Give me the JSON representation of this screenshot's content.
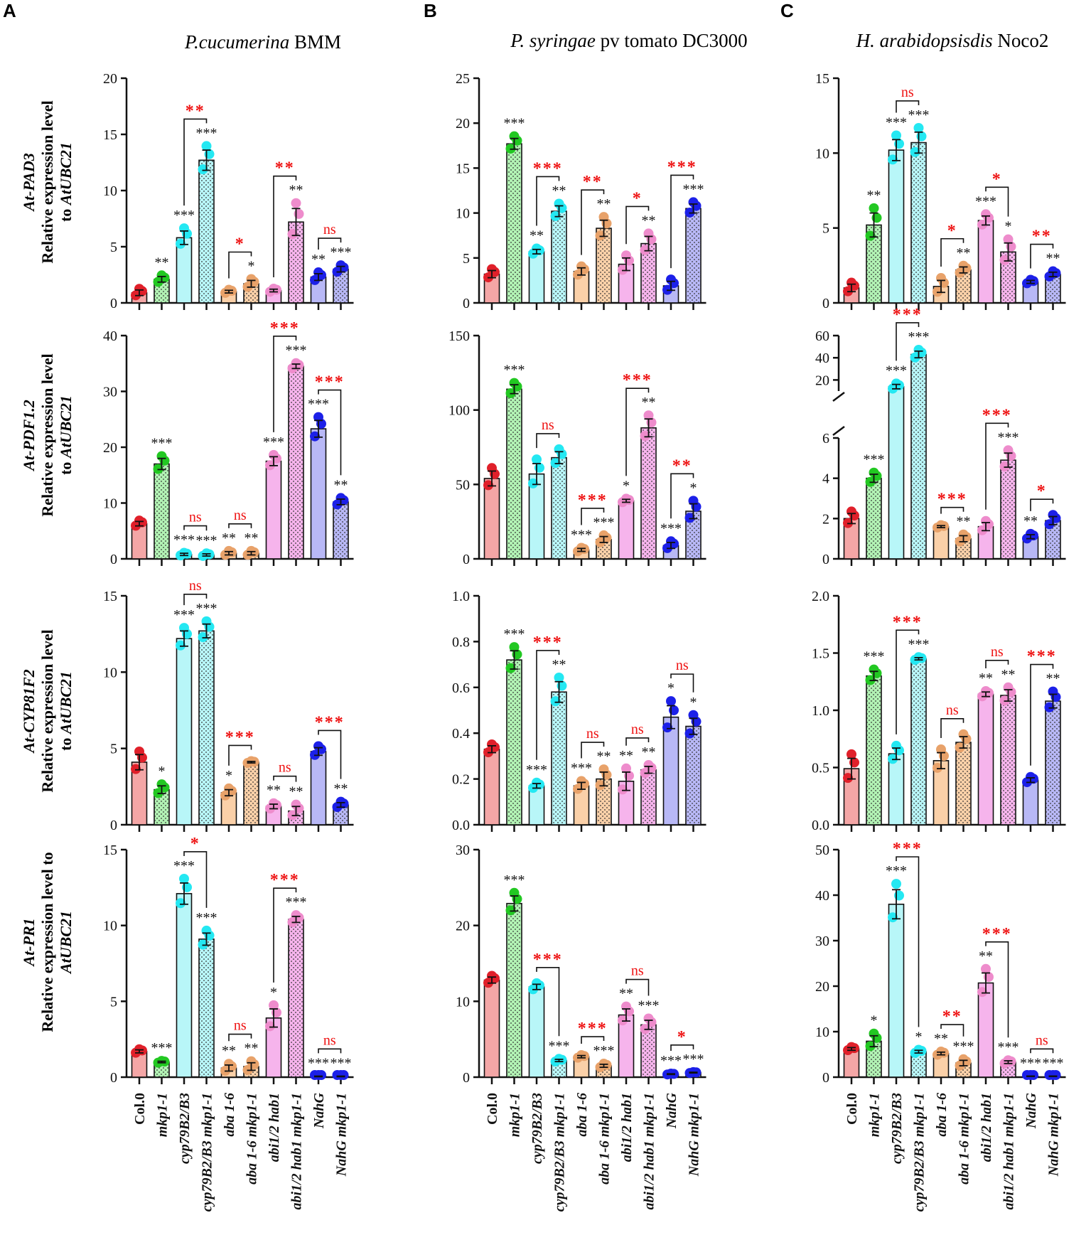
{
  "panels": [
    {
      "letter": "A",
      "pathogen_italic": "P.cucumerina",
      "pathogen_rest": " BMM"
    },
    {
      "letter": "B",
      "pathogen_italic": "P. syringae",
      "pathogen_rest": " pv tomato DC3000"
    },
    {
      "letter": "C",
      "pathogen_italic": "H. arabidopsisdis",
      "pathogen_rest": " Noco2"
    }
  ],
  "row_labels": [
    {
      "gene": "At-PAD3",
      "line1": "Relative expression level",
      "line2_plain": "to ",
      "line2_italic": "AtUBC21"
    },
    {
      "gene": "At-PDF1.2",
      "line1": "Relative expression level",
      "line2_plain": "to ",
      "line2_italic": "AtUBC21"
    },
    {
      "gene": "At-CYP81F2",
      "line1": "Relative expression level",
      "line2_plain": "to ",
      "line2_italic": "AtUBC21"
    },
    {
      "gene": "At-PR1",
      "line1": "Relative expression level to",
      "line2_plain": "",
      "line2_italic": "AtUBC21"
    }
  ],
  "genotypes": [
    "Col.0",
    "mkp1-1",
    "cyp79B2/B3",
    "cyp79B2/B3 mkp1-1",
    "aba 1-6",
    "aba 1-6 mkp1-1",
    "abi1/2 hab1",
    "abi1/2 hab1 mkp1-1",
    "NahG",
    "NahG mkp1-1"
  ],
  "chart_data": [
    {
      "type": "bar",
      "gene": "At-PAD3",
      "pathogen": "P.cucumerina BMM",
      "ylim": [
        0,
        20
      ],
      "ticks": [
        0,
        5,
        10,
        15,
        20
      ],
      "values": [
        0.9,
        2.1,
        5.8,
        12.7,
        1.0,
        1.7,
        1.1,
        7.2,
        2.3,
        3.0
      ],
      "errors": [
        0.25,
        0.25,
        0.6,
        0.9,
        0.12,
        0.3,
        0.12,
        1.2,
        0.3,
        0.25
      ],
      "marks": [
        "",
        "**",
        "***",
        "***",
        "",
        "*",
        "",
        "**",
        "**",
        "***"
      ],
      "comparisons": [
        {
          "pair": [
            2,
            3
          ],
          "label": "**",
          "color": "red"
        },
        {
          "pair": [
            4,
            5
          ],
          "label": "*",
          "color": "red"
        },
        {
          "pair": [
            6,
            7
          ],
          "label": "**",
          "color": "red"
        },
        {
          "pair": [
            8,
            9
          ],
          "label": "ns",
          "color": "red"
        }
      ]
    },
    {
      "type": "bar",
      "gene": "At-PAD3",
      "pathogen": "P. syringae pv tomato DC3000",
      "ylim": [
        0,
        25
      ],
      "ticks": [
        0,
        5,
        10,
        15,
        20,
        25
      ],
      "values": [
        3.2,
        17.7,
        5.7,
        10.2,
        3.5,
        8.3,
        4.3,
        6.6,
        1.9,
        10.5
      ],
      "errors": [
        0.4,
        0.6,
        0.25,
        0.6,
        0.4,
        0.9,
        0.7,
        0.8,
        0.5,
        0.5
      ],
      "marks": [
        "",
        "***",
        "**",
        "**",
        "",
        "**",
        "",
        "**",
        "",
        "***"
      ],
      "comparisons": [
        {
          "pair": [
            2,
            3
          ],
          "label": "***",
          "color": "red"
        },
        {
          "pair": [
            4,
            5
          ],
          "label": "**",
          "color": "red"
        },
        {
          "pair": [
            6,
            7
          ],
          "label": "*",
          "color": "red"
        },
        {
          "pair": [
            8,
            9
          ],
          "label": "***",
          "color": "red"
        }
      ]
    },
    {
      "type": "bar",
      "gene": "At-PAD3",
      "pathogen": "H. arabidopsisdis Noco2",
      "ylim": [
        0,
        15
      ],
      "ticks": [
        0,
        5,
        10,
        15
      ],
      "values": [
        1.0,
        5.2,
        10.2,
        10.7,
        1.1,
        2.2,
        5.5,
        3.4,
        1.4,
        1.9
      ],
      "errors": [
        0.25,
        0.8,
        0.7,
        0.7,
        0.4,
        0.2,
        0.3,
        0.6,
        0.1,
        0.15
      ],
      "marks": [
        "",
        "**",
        "***",
        "***",
        "",
        "**",
        "***",
        "*",
        "",
        "**"
      ],
      "comparisons": [
        {
          "pair": [
            2,
            3
          ],
          "label": "ns",
          "color": "red"
        },
        {
          "pair": [
            4,
            5
          ],
          "label": "*",
          "color": "red"
        },
        {
          "pair": [
            6,
            7
          ],
          "label": "*",
          "color": "red"
        },
        {
          "pair": [
            8,
            9
          ],
          "label": "**",
          "color": "red"
        }
      ]
    },
    {
      "type": "bar",
      "gene": "At-PDF1.2",
      "pathogen": "P.cucumerina BMM",
      "ylim": [
        0,
        40
      ],
      "ticks": [
        0,
        10,
        20,
        30,
        40
      ],
      "values": [
        6.3,
        17.0,
        0.8,
        0.7,
        1.0,
        1.0,
        17.5,
        34.5,
        23.3,
        10.2
      ],
      "errors": [
        0.4,
        1.0,
        0.2,
        0.2,
        0.3,
        0.3,
        0.8,
        0.4,
        1.5,
        0.5
      ],
      "marks": [
        "",
        "***",
        "***",
        "***",
        "**",
        "**",
        "***",
        "***",
        "***",
        "**"
      ],
      "comparisons": [
        {
          "pair": [
            2,
            3
          ],
          "label": "ns",
          "color": "red"
        },
        {
          "pair": [
            4,
            5
          ],
          "label": "ns",
          "color": "red"
        },
        {
          "pair": [
            6,
            7
          ],
          "label": "***",
          "color": "red"
        },
        {
          "pair": [
            8,
            9
          ],
          "label": "***",
          "color": "red"
        }
      ]
    },
    {
      "type": "bar",
      "gene": "At-PDF1.2",
      "pathogen": "P. syringae pv tomato DC3000",
      "ylim": [
        0,
        150
      ],
      "ticks": [
        0,
        50,
        100,
        150
      ],
      "values": [
        54,
        114,
        57,
        68,
        6,
        13,
        39,
        88,
        9,
        32
      ],
      "errors": [
        5,
        3,
        7,
        4,
        1,
        2,
        1,
        6,
        2,
        5
      ],
      "marks": [
        "",
        "***",
        "",
        "",
        "***",
        "***",
        "*",
        "**",
        "***",
        "*"
      ],
      "comparisons": [
        {
          "pair": [
            2,
            3
          ],
          "label": "ns",
          "color": "red"
        },
        {
          "pair": [
            4,
            5
          ],
          "label": "***",
          "color": "red"
        },
        {
          "pair": [
            6,
            7
          ],
          "label": "***",
          "color": "red"
        },
        {
          "pair": [
            8,
            9
          ],
          "label": "**",
          "color": "red"
        }
      ]
    },
    {
      "type": "bar",
      "gene": "At-PDF1.2",
      "pathogen": "H. arabidopsisdis Noco2",
      "broken_axis": true,
      "lower_ylim": [
        0,
        6
      ],
      "lower_ticks": [
        0,
        2,
        4,
        6
      ],
      "upper_ylim": [
        10,
        60
      ],
      "upper_ticks": [
        20,
        40,
        60
      ],
      "values": [
        2.0,
        4.0,
        14.0,
        43.0,
        1.6,
        1.0,
        1.6,
        4.9,
        1.1,
        1.9
      ],
      "errors": [
        0.25,
        0.2,
        2.0,
        3.0,
        0.05,
        0.15,
        0.2,
        0.35,
        0.1,
        0.2
      ],
      "marks": [
        "",
        "***",
        "***",
        "***",
        "",
        "**",
        "",
        "***",
        "**",
        ""
      ],
      "comparisons": [
        {
          "pair": [
            2,
            3
          ],
          "label": "***",
          "color": "red"
        },
        {
          "pair": [
            4,
            5
          ],
          "label": "***",
          "color": "red"
        },
        {
          "pair": [
            6,
            7
          ],
          "label": "***",
          "color": "red"
        },
        {
          "pair": [
            8,
            9
          ],
          "label": "*",
          "color": "red"
        }
      ]
    },
    {
      "type": "bar",
      "gene": "At-CYP81F2",
      "pathogen": "P.cucumerina BMM",
      "ylim": [
        0,
        15
      ],
      "ticks": [
        0,
        5,
        10,
        15
      ],
      "values": [
        4.1,
        2.3,
        12.2,
        12.7,
        2.1,
        4.1,
        1.2,
        0.9,
        4.8,
        1.3
      ],
      "errors": [
        0.5,
        0.25,
        0.5,
        0.45,
        0.2,
        0.05,
        0.15,
        0.3,
        0.25,
        0.15
      ],
      "marks": [
        "",
        "*",
        "***",
        "***",
        "*",
        "",
        "**",
        "**",
        "",
        "**"
      ],
      "comparisons": [
        {
          "pair": [
            2,
            3
          ],
          "label": "ns",
          "color": "red"
        },
        {
          "pair": [
            4,
            5
          ],
          "label": "***",
          "color": "red"
        },
        {
          "pair": [
            6,
            7
          ],
          "label": "ns",
          "color": "red"
        },
        {
          "pair": [
            8,
            9
          ],
          "label": "***",
          "color": "red"
        }
      ]
    },
    {
      "type": "bar",
      "gene": "At-CYP81F2",
      "pathogen": "P. syringae pv tomato DC3000",
      "ylim": [
        0,
        1.0
      ],
      "ticks": [
        0,
        0.2,
        0.4,
        0.6,
        0.8,
        1.0
      ],
      "tick_decimals": 1,
      "values": [
        0.33,
        0.72,
        0.17,
        0.58,
        0.17,
        0.2,
        0.19,
        0.24,
        0.47,
        0.43
      ],
      "errors": [
        0.015,
        0.04,
        0.01,
        0.045,
        0.015,
        0.03,
        0.04,
        0.015,
        0.05,
        0.035
      ],
      "marks": [
        "",
        "***",
        "***",
        "**",
        "***",
        "**",
        "**",
        "**",
        "*",
        "*"
      ],
      "comparisons": [
        {
          "pair": [
            2,
            3
          ],
          "label": "***",
          "color": "red"
        },
        {
          "pair": [
            4,
            5
          ],
          "label": "ns",
          "color": "red"
        },
        {
          "pair": [
            6,
            7
          ],
          "label": "ns",
          "color": "red"
        },
        {
          "pair": [
            8,
            9
          ],
          "label": "ns",
          "color": "red"
        }
      ]
    },
    {
      "type": "bar",
      "gene": "At-CYP81F2",
      "pathogen": "H. arabidopsisdis Noco2",
      "ylim": [
        0,
        2.0
      ],
      "ticks": [
        0,
        0.5,
        1.0,
        1.5,
        2.0
      ],
      "tick_decimals": 1,
      "values": [
        0.49,
        1.3,
        0.62,
        1.45,
        0.56,
        0.72,
        1.14,
        1.13,
        0.39,
        1.08
      ],
      "errors": [
        0.09,
        0.04,
        0.05,
        0.01,
        0.07,
        0.05,
        0.02,
        0.05,
        0.02,
        0.06
      ],
      "marks": [
        "",
        "***",
        "",
        "***",
        "",
        "",
        "**",
        "**",
        "",
        "**"
      ],
      "comparisons": [
        {
          "pair": [
            2,
            3
          ],
          "label": "***",
          "color": "red"
        },
        {
          "pair": [
            4,
            5
          ],
          "label": "ns",
          "color": "red"
        },
        {
          "pair": [
            6,
            7
          ],
          "label": "ns",
          "color": "red"
        },
        {
          "pair": [
            8,
            9
          ],
          "label": "***",
          "color": "red"
        }
      ]
    },
    {
      "type": "bar",
      "gene": "At-PR1",
      "pathogen": "P.cucumerina BMM",
      "ylim": [
        0,
        15
      ],
      "ticks": [
        0,
        5,
        10,
        15
      ],
      "values": [
        1.7,
        1.0,
        12.1,
        9.1,
        0.6,
        0.7,
        3.9,
        10.4,
        0.05,
        0.05
      ],
      "errors": [
        0.1,
        0.05,
        0.7,
        0.4,
        0.2,
        0.25,
        0.6,
        0.2,
        0.02,
        0.02
      ],
      "marks": [
        "",
        "***",
        "***",
        "***",
        "**",
        "**",
        "*",
        "***",
        "***",
        "***"
      ],
      "comparisons": [
        {
          "pair": [
            2,
            3
          ],
          "label": "*",
          "color": "red"
        },
        {
          "pair": [
            4,
            5
          ],
          "label": "ns",
          "color": "red"
        },
        {
          "pair": [
            6,
            7
          ],
          "label": "***",
          "color": "red"
        },
        {
          "pair": [
            8,
            9
          ],
          "label": "ns",
          "color": "red"
        }
      ]
    },
    {
      "type": "bar",
      "gene": "At-PR1",
      "pathogen": "P. syringae pv tomato DC3000",
      "ylim": [
        0,
        30
      ],
      "ticks": [
        0,
        10,
        20,
        30
      ],
      "values": [
        12.8,
        22.9,
        11.9,
        2.2,
        2.7,
        1.5,
        8.2,
        6.9,
        0.4,
        0.6
      ],
      "errors": [
        0.4,
        1.0,
        0.35,
        0.15,
        0.15,
        0.2,
        0.8,
        0.6,
        0.05,
        0.05
      ],
      "marks": [
        "",
        "***",
        "",
        "***",
        "",
        "***",
        "**",
        "***",
        "***",
        "***"
      ],
      "comparisons": [
        {
          "pair": [
            2,
            3
          ],
          "label": "***",
          "color": "red"
        },
        {
          "pair": [
            4,
            5
          ],
          "label": "***",
          "color": "red"
        },
        {
          "pair": [
            6,
            7
          ],
          "label": "ns",
          "color": "red"
        },
        {
          "pair": [
            8,
            9
          ],
          "label": "*",
          "color": "red"
        }
      ]
    },
    {
      "type": "bar",
      "gene": "At-PR1",
      "pathogen": "H. arabidopsisdis Noco2",
      "ylim": [
        0,
        50
      ],
      "ticks": [
        0,
        10,
        20,
        30,
        40,
        50
      ],
      "values": [
        6.2,
        7.9,
        38.0,
        5.6,
        5.2,
        3.1,
        20.7,
        3.3,
        0.2,
        0.2
      ],
      "errors": [
        0.3,
        1.2,
        3.2,
        0.3,
        0.3,
        0.6,
        2.2,
        0.3,
        0.05,
        0.05
      ],
      "marks": [
        "",
        "*",
        "***",
        "*",
        "**",
        "***",
        "**",
        "***",
        "***",
        "***"
      ],
      "comparisons": [
        {
          "pair": [
            2,
            3
          ],
          "label": "***",
          "color": "red"
        },
        {
          "pair": [
            4,
            5
          ],
          "label": "**",
          "color": "red"
        },
        {
          "pair": [
            6,
            7
          ],
          "label": "***",
          "color": "red"
        },
        {
          "pair": [
            8,
            9
          ],
          "label": "ns",
          "color": "red"
        }
      ]
    }
  ],
  "colors": {
    "fills": [
      "#f4a6a6",
      "#b2f2b4",
      "#b8f6f8",
      "#b8f6f8",
      "#fad0a8",
      "#fad0a8",
      "#f6b4ec",
      "#f6b4ec",
      "#b8b8f6",
      "#b8b8f6"
    ],
    "dots": [
      "#e0202a",
      "#22c822",
      "#24e8f2",
      "#24e8f2",
      "#e8a26a",
      "#e8a26a",
      "#ee8ccc",
      "#ee8ccc",
      "#1c20e8",
      "#1c20e8"
    ],
    "significance_red": "#ee1111",
    "ink": "#111111"
  }
}
